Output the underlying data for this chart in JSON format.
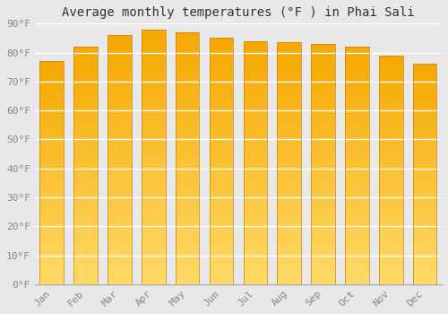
{
  "title": "Average monthly temperatures (°F ) in Phai Sali",
  "months": [
    "Jan",
    "Feb",
    "Mar",
    "Apr",
    "May",
    "Jun",
    "Jul",
    "Aug",
    "Sep",
    "Oct",
    "Nov",
    "Dec"
  ],
  "values": [
    77,
    82,
    86,
    88,
    87,
    85,
    84,
    83.5,
    83,
    82,
    79,
    76
  ],
  "bar_color_top": "#F5A800",
  "bar_color_bottom": "#FFD966",
  "bar_edge_color": "#C8820A",
  "ylim": [
    0,
    90
  ],
  "yticks": [
    0,
    10,
    20,
    30,
    40,
    50,
    60,
    70,
    80,
    90
  ],
  "ytick_labels": [
    "0°F",
    "10°F",
    "20°F",
    "30°F",
    "40°F",
    "50°F",
    "60°F",
    "70°F",
    "80°F",
    "90°F"
  ],
  "background_color": "#e8e8e8",
  "plot_bg_color": "#e8e8e8",
  "grid_color": "#ffffff",
  "title_fontsize": 10,
  "tick_fontsize": 8,
  "bar_width": 0.7
}
